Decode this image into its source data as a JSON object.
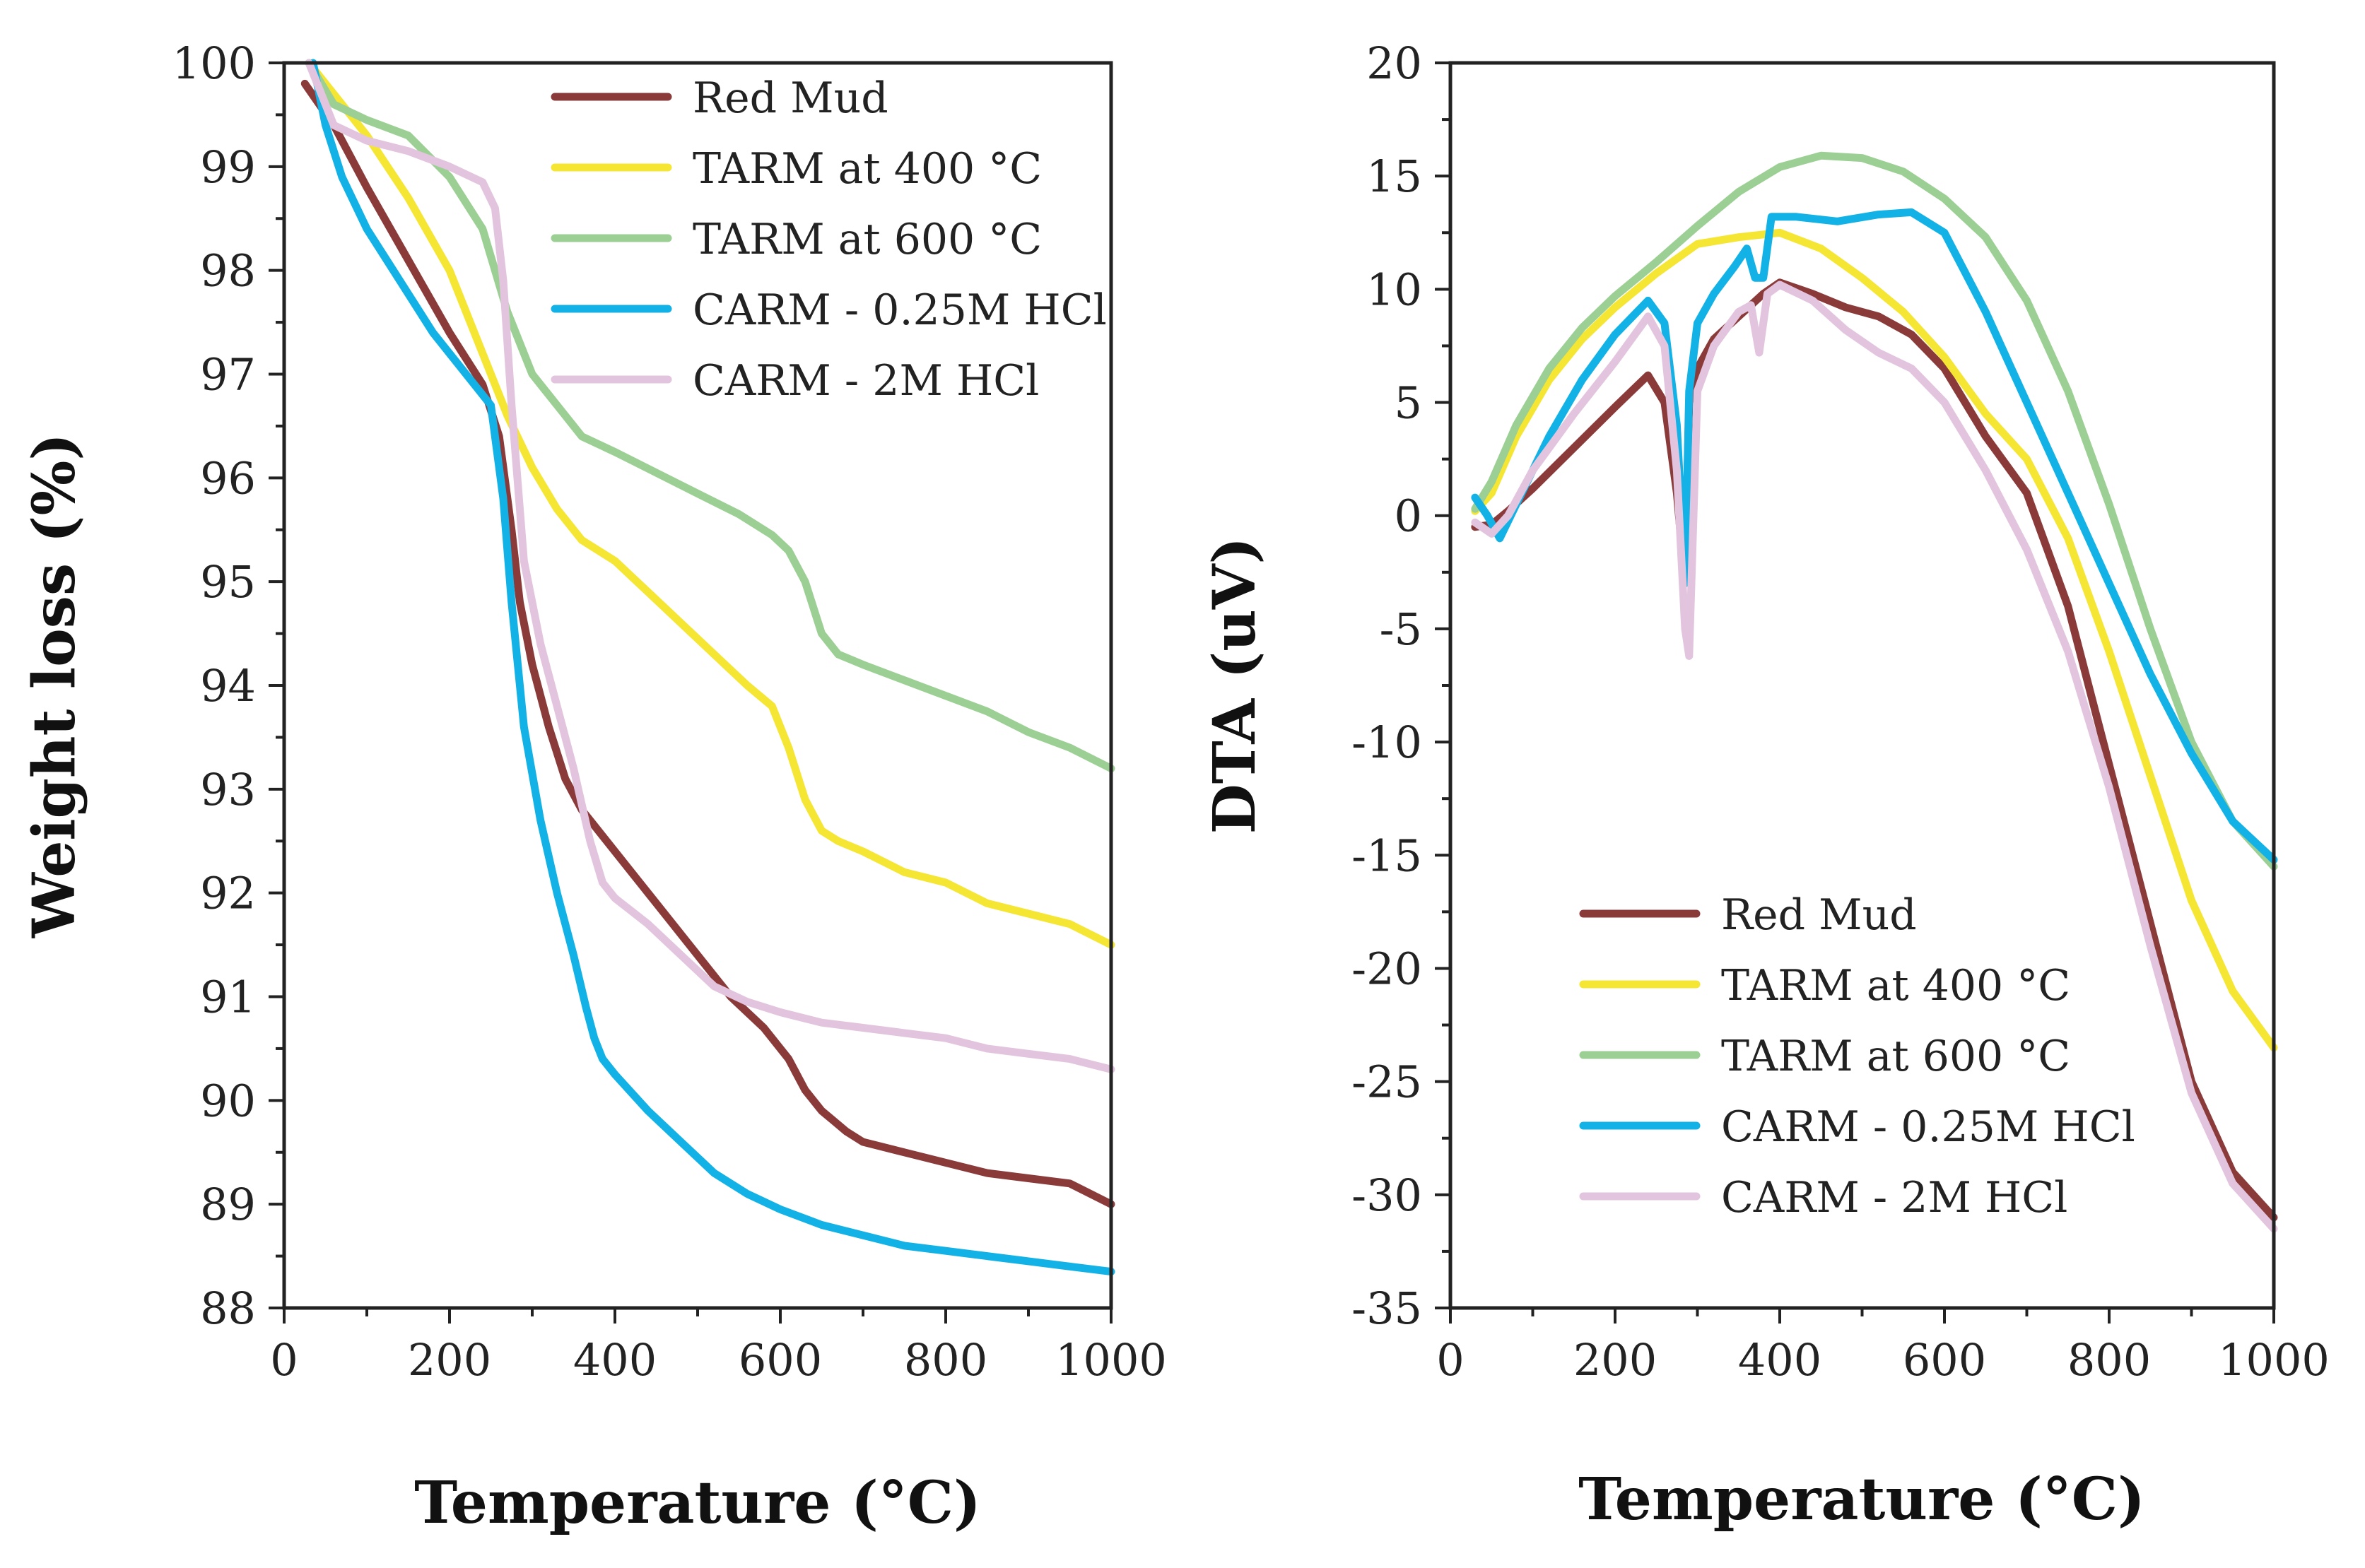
{
  "colors": {
    "red_mud": "#8b3a3a",
    "tarm_400": "#f5e633",
    "tarm_600": "#9ccf94",
    "carm_025": "#12b2e6",
    "carm_2": "#e3c4de"
  },
  "chart_data": [
    {
      "type": "line",
      "title": "",
      "xlabel": "Temperature (°C)",
      "ylabel": "Weight loss (%)",
      "xlim": [
        0,
        1000
      ],
      "ylim": [
        88,
        100
      ],
      "xticks": [
        "0",
        "200",
        "400",
        "600",
        "800",
        "1000"
      ],
      "yticks": [
        "88",
        "89",
        "90",
        "91",
        "92",
        "93",
        "94",
        "95",
        "96",
        "97",
        "98",
        "99",
        "100"
      ],
      "legend_position": "top-right",
      "series": [
        {
          "name": "Red Mud",
          "color_key": "red_mud",
          "x": [
            25,
            60,
            100,
            150,
            200,
            240,
            260,
            275,
            285,
            300,
            320,
            340,
            360,
            380,
            400,
            430,
            460,
            500,
            540,
            580,
            610,
            630,
            650,
            665,
            680,
            700,
            750,
            800,
            850,
            900,
            950,
            1000
          ],
          "y": [
            99.8,
            99.4,
            98.8,
            98.1,
            97.4,
            96.9,
            96.4,
            95.5,
            94.8,
            94.2,
            93.6,
            93.1,
            92.8,
            92.6,
            92.4,
            92.1,
            91.8,
            91.4,
            91.0,
            90.7,
            90.4,
            90.1,
            89.9,
            89.8,
            89.7,
            89.6,
            89.5,
            89.4,
            89.3,
            89.25,
            89.2,
            89.0
          ]
        },
        {
          "name": "TARM at 400 °C",
          "color_key": "tarm_400",
          "x": [
            30,
            60,
            100,
            150,
            200,
            240,
            270,
            300,
            330,
            360,
            400,
            440,
            480,
            520,
            560,
            590,
            610,
            630,
            650,
            670,
            700,
            750,
            800,
            850,
            900,
            950,
            1000
          ],
          "y": [
            100,
            99.7,
            99.3,
            98.7,
            98.0,
            97.2,
            96.6,
            96.1,
            95.7,
            95.4,
            95.2,
            94.9,
            94.6,
            94.3,
            94.0,
            93.8,
            93.4,
            92.9,
            92.6,
            92.5,
            92.4,
            92.2,
            92.1,
            91.9,
            91.8,
            91.7,
            91.5
          ]
        },
        {
          "name": "TARM at 600 °C",
          "color_key": "tarm_600",
          "x": [
            30,
            60,
            100,
            150,
            200,
            240,
            270,
            300,
            330,
            360,
            400,
            450,
            500,
            550,
            590,
            610,
            630,
            650,
            670,
            700,
            750,
            800,
            850,
            900,
            950,
            1000
          ],
          "y": [
            100,
            99.6,
            99.45,
            99.3,
            98.9,
            98.4,
            97.6,
            97.0,
            96.7,
            96.4,
            96.25,
            96.05,
            95.85,
            95.65,
            95.45,
            95.3,
            95.0,
            94.5,
            94.3,
            94.2,
            94.05,
            93.9,
            93.75,
            93.55,
            93.4,
            93.2
          ]
        },
        {
          "name": "CARM - 0.25M HCl",
          "color_key": "carm_025",
          "x": [
            35,
            50,
            70,
            100,
            140,
            180,
            220,
            250,
            265,
            275,
            290,
            310,
            330,
            350,
            365,
            375,
            385,
            400,
            440,
            480,
            520,
            560,
            600,
            650,
            700,
            750,
            800,
            850,
            900,
            950,
            1000
          ],
          "y": [
            100,
            99.4,
            98.9,
            98.4,
            97.9,
            97.4,
            97.0,
            96.7,
            95.8,
            94.8,
            93.6,
            92.7,
            92.0,
            91.4,
            90.9,
            90.6,
            90.4,
            90.25,
            89.9,
            89.6,
            89.3,
            89.1,
            88.95,
            88.8,
            88.7,
            88.6,
            88.55,
            88.5,
            88.45,
            88.4,
            88.35
          ]
        },
        {
          "name": "CARM - 2M HCl",
          "color_key": "carm_2",
          "x": [
            30,
            60,
            100,
            150,
            200,
            240,
            255,
            265,
            275,
            290,
            310,
            330,
            350,
            370,
            385,
            400,
            440,
            480,
            520,
            560,
            600,
            650,
            700,
            750,
            800,
            850,
            900,
            950,
            1000
          ],
          "y": [
            100,
            99.4,
            99.25,
            99.15,
            99.0,
            98.85,
            98.6,
            97.9,
            96.7,
            95.2,
            94.4,
            93.8,
            93.2,
            92.5,
            92.1,
            91.95,
            91.7,
            91.4,
            91.1,
            90.95,
            90.85,
            90.75,
            90.7,
            90.65,
            90.6,
            90.5,
            90.45,
            90.4,
            90.3
          ]
        }
      ]
    },
    {
      "type": "line",
      "title": "",
      "xlabel": "Temperature (°C)",
      "ylabel": "DTA (uV)",
      "xlim": [
        0,
        1000
      ],
      "ylim": [
        -35,
        20
      ],
      "xticks": [
        "0",
        "200",
        "400",
        "600",
        "800",
        "1000"
      ],
      "yticks": [
        "-35",
        "-30",
        "-25",
        "-20",
        "-15",
        "-10",
        "-5",
        "0",
        "5",
        "10",
        "15",
        "20"
      ],
      "legend_position": "bottom-right",
      "series": [
        {
          "name": "Red Mud",
          "color_key": "red_mud",
          "x": [
            30,
            50,
            70,
            100,
            150,
            200,
            240,
            260,
            275,
            285,
            290,
            300,
            320,
            350,
            380,
            400,
            440,
            480,
            520,
            560,
            600,
            650,
            700,
            750,
            800,
            850,
            900,
            950,
            1000
          ],
          "y": [
            -0.5,
            -0.4,
            0.2,
            1.2,
            3.0,
            4.8,
            6.2,
            5.0,
            1.0,
            -3.0,
            5.0,
            6.5,
            7.8,
            8.8,
            9.8,
            10.3,
            9.8,
            9.2,
            8.8,
            8.0,
            6.5,
            3.5,
            1.0,
            -4.0,
            -11.0,
            -18.0,
            -25.0,
            -29.0,
            -31.0
          ]
        },
        {
          "name": "TARM at 400 °C",
          "color_key": "tarm_400",
          "x": [
            30,
            50,
            80,
            120,
            160,
            200,
            250,
            300,
            350,
            400,
            450,
            500,
            550,
            600,
            650,
            700,
            750,
            800,
            850,
            900,
            950,
            1000
          ],
          "y": [
            0.2,
            1.0,
            3.5,
            6.0,
            7.8,
            9.2,
            10.7,
            12.0,
            12.3,
            12.5,
            11.8,
            10.5,
            9.0,
            7.0,
            4.5,
            2.5,
            -1.0,
            -6.0,
            -11.5,
            -17.0,
            -21.0,
            -23.5
          ]
        },
        {
          "name": "TARM at 600 °C",
          "color_key": "tarm_600",
          "x": [
            30,
            50,
            80,
            120,
            160,
            200,
            250,
            300,
            350,
            400,
            450,
            500,
            550,
            600,
            650,
            700,
            750,
            800,
            850,
            900,
            950,
            1000
          ],
          "y": [
            0.3,
            1.5,
            4.0,
            6.5,
            8.3,
            9.7,
            11.2,
            12.8,
            14.3,
            15.4,
            15.9,
            15.8,
            15.2,
            14.0,
            12.3,
            9.5,
            5.5,
            0.5,
            -5.0,
            -10.0,
            -13.5,
            -15.5
          ]
        },
        {
          "name": "CARM - 0.25M HCl",
          "color_key": "carm_025",
          "x": [
            30,
            45,
            60,
            80,
            120,
            160,
            200,
            240,
            260,
            275,
            285,
            290,
            300,
            320,
            345,
            360,
            370,
            380,
            390,
            420,
            470,
            520,
            560,
            600,
            650,
            700,
            750,
            800,
            850,
            900,
            950,
            1000
          ],
          "y": [
            0.8,
            0.0,
            -1.0,
            0.5,
            3.5,
            6.0,
            8.0,
            9.5,
            8.5,
            4.0,
            -3.0,
            5.5,
            8.5,
            9.8,
            11.0,
            11.8,
            10.5,
            10.5,
            13.2,
            13.2,
            13.0,
            13.3,
            13.4,
            12.5,
            9.0,
            5.0,
            1.0,
            -3.0,
            -7.0,
            -10.5,
            -13.5,
            -15.2
          ]
        },
        {
          "name": "CARM - 2M HCl",
          "color_key": "carm_2",
          "x": [
            30,
            50,
            70,
            100,
            150,
            200,
            240,
            260,
            275,
            285,
            290,
            300,
            320,
            350,
            365,
            375,
            385,
            400,
            440,
            480,
            520,
            560,
            600,
            650,
            700,
            750,
            800,
            850,
            900,
            950,
            1000
          ],
          "y": [
            -0.3,
            -0.8,
            0.0,
            2.0,
            4.5,
            6.8,
            8.8,
            7.5,
            2.0,
            -5.0,
            -6.2,
            5.5,
            7.5,
            9.0,
            9.3,
            7.2,
            9.8,
            10.2,
            9.5,
            8.2,
            7.2,
            6.5,
            5.0,
            2.0,
            -1.5,
            -6.0,
            -12.0,
            -19.0,
            -25.5,
            -29.5,
            -31.5
          ]
        }
      ]
    }
  ]
}
